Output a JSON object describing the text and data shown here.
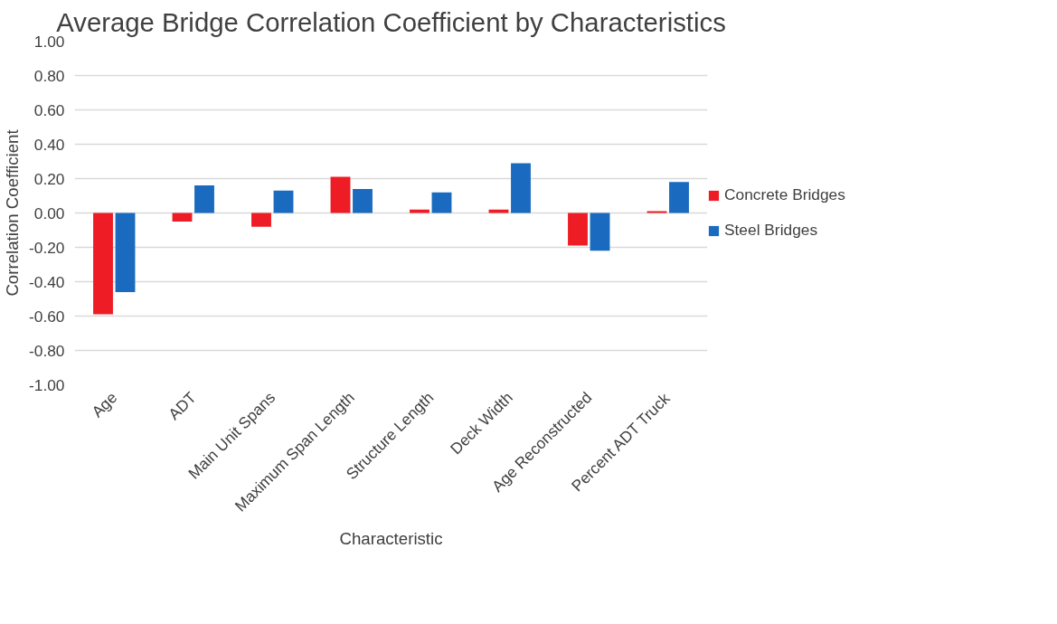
{
  "chart_data": {
    "type": "bar",
    "title": "Average Bridge Correlation Coefficient by Characteristics",
    "xlabel": "Characteristic",
    "ylabel": "Correlation Coefficient",
    "categories": [
      "Age",
      "ADT",
      "Main Unit Spans",
      "Maximum Span Length",
      "Structure Length",
      "Deck Width",
      "Age Reconstructed",
      "Percent ADT Truck"
    ],
    "series": [
      {
        "name": "Concrete Bridges",
        "color": "#ee1c24",
        "values": [
          -0.59,
          -0.05,
          -0.08,
          0.21,
          0.02,
          0.02,
          -0.19,
          0.01
        ]
      },
      {
        "name": "Steel Bridges",
        "color": "#1a6bbf",
        "values": [
          -0.46,
          0.16,
          0.13,
          0.14,
          0.12,
          0.29,
          -0.22,
          0.18
        ]
      }
    ],
    "ylim": [
      -1.0,
      1.0
    ],
    "yticks": [
      {
        "value": -1.0,
        "label": "-1.00"
      },
      {
        "value": -0.8,
        "label": "-0.80"
      },
      {
        "value": -0.6,
        "label": "-0.60"
      },
      {
        "value": -0.4,
        "label": "-0.40"
      },
      {
        "value": -0.2,
        "label": "-0.20"
      },
      {
        "value": 0.0,
        "label": "0.00"
      },
      {
        "value": 0.2,
        "label": "0.20"
      },
      {
        "value": 0.4,
        "label": "0.40"
      },
      {
        "value": 0.6,
        "label": "0.60"
      },
      {
        "value": 0.8,
        "label": "0.80"
      },
      {
        "value": 1.0,
        "label": "1.00"
      }
    ],
    "grid": "y",
    "legend": "right"
  }
}
